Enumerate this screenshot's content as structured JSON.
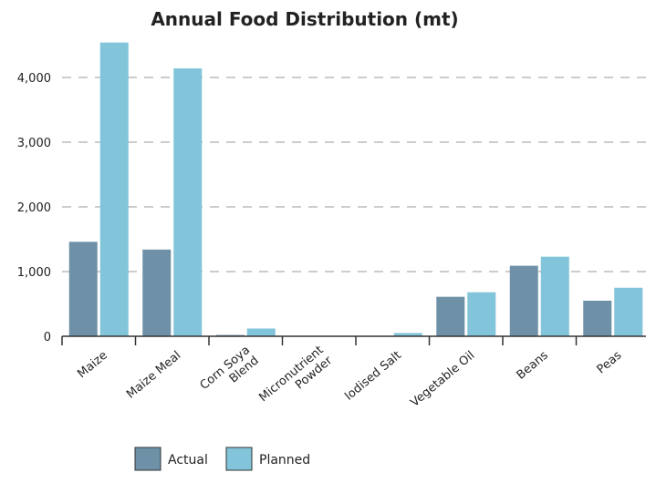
{
  "chart_data": {
    "type": "bar",
    "title": "Annual Food Distribution (mt)",
    "xlabel": "",
    "ylabel": "",
    "categories": [
      [
        "Maize"
      ],
      [
        "Maize Meal"
      ],
      [
        "Corn Soya",
        "Blend"
      ],
      [
        "Micronutrient",
        "Powder"
      ],
      [
        "Iodised Salt"
      ],
      [
        "Vegetable Oil"
      ],
      [
        "Beans"
      ],
      [
        "Peas"
      ]
    ],
    "series": [
      {
        "name": "Actual",
        "color": "#6f91a8",
        "values": [
          1460,
          1340,
          20,
          0,
          0,
          610,
          1090,
          550
        ]
      },
      {
        "name": "Planned",
        "color": "#82c4d9",
        "values": [
          4540,
          4140,
          120,
          0,
          50,
          680,
          1230,
          750
        ]
      }
    ],
    "ylim": [
      0,
      4600
    ],
    "yticks": [
      0,
      1000,
      2000,
      3000,
      4000
    ],
    "ytick_labels": [
      "0",
      "1,000",
      "2,000",
      "3,000",
      "4,000"
    ],
    "grid": true,
    "legend": "bottom-center"
  }
}
